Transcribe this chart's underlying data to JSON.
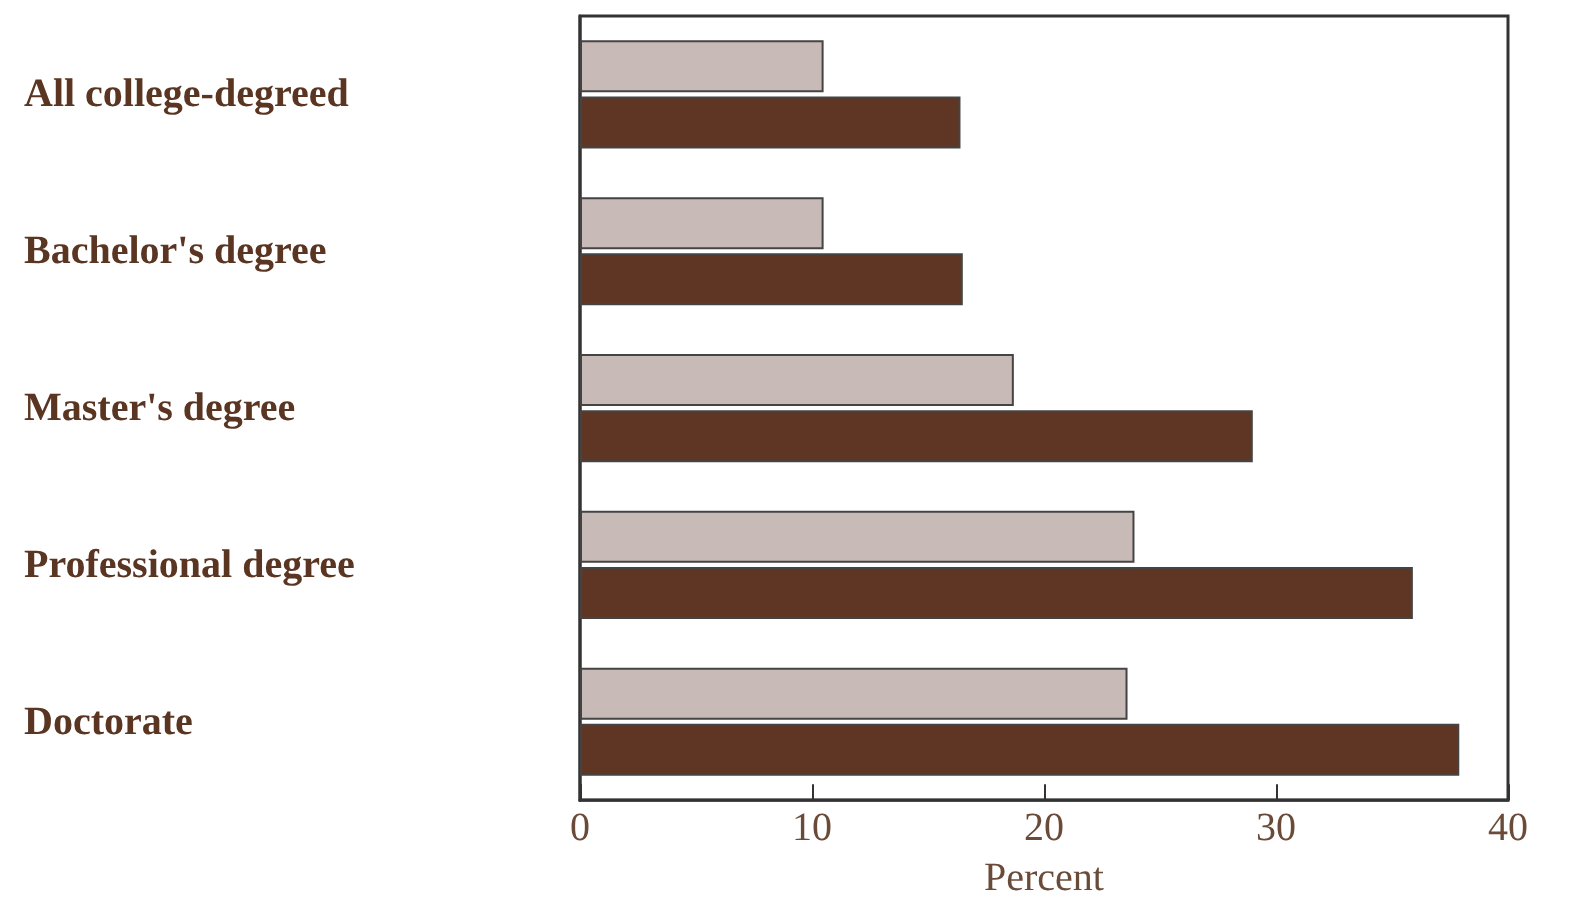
{
  "chart_data": {
    "type": "bar",
    "orientation": "horizontal",
    "xlabel": "Percent",
    "categories": [
      "All college-degreed",
      "Bachelor's degree",
      "Master's degree",
      "Professional degree",
      "Doctorate"
    ],
    "series": [
      {
        "color": "#c8bab6",
        "values": [
          10.5,
          10.5,
          18.7,
          23.9,
          23.6
        ]
      },
      {
        "color": "#5e3623",
        "values": [
          16.4,
          16.5,
          29.0,
          35.9,
          37.9
        ]
      }
    ],
    "xlim": [
      0,
      40
    ],
    "xticks": [
      0,
      10,
      20,
      30,
      40
    ],
    "grid": false
  }
}
